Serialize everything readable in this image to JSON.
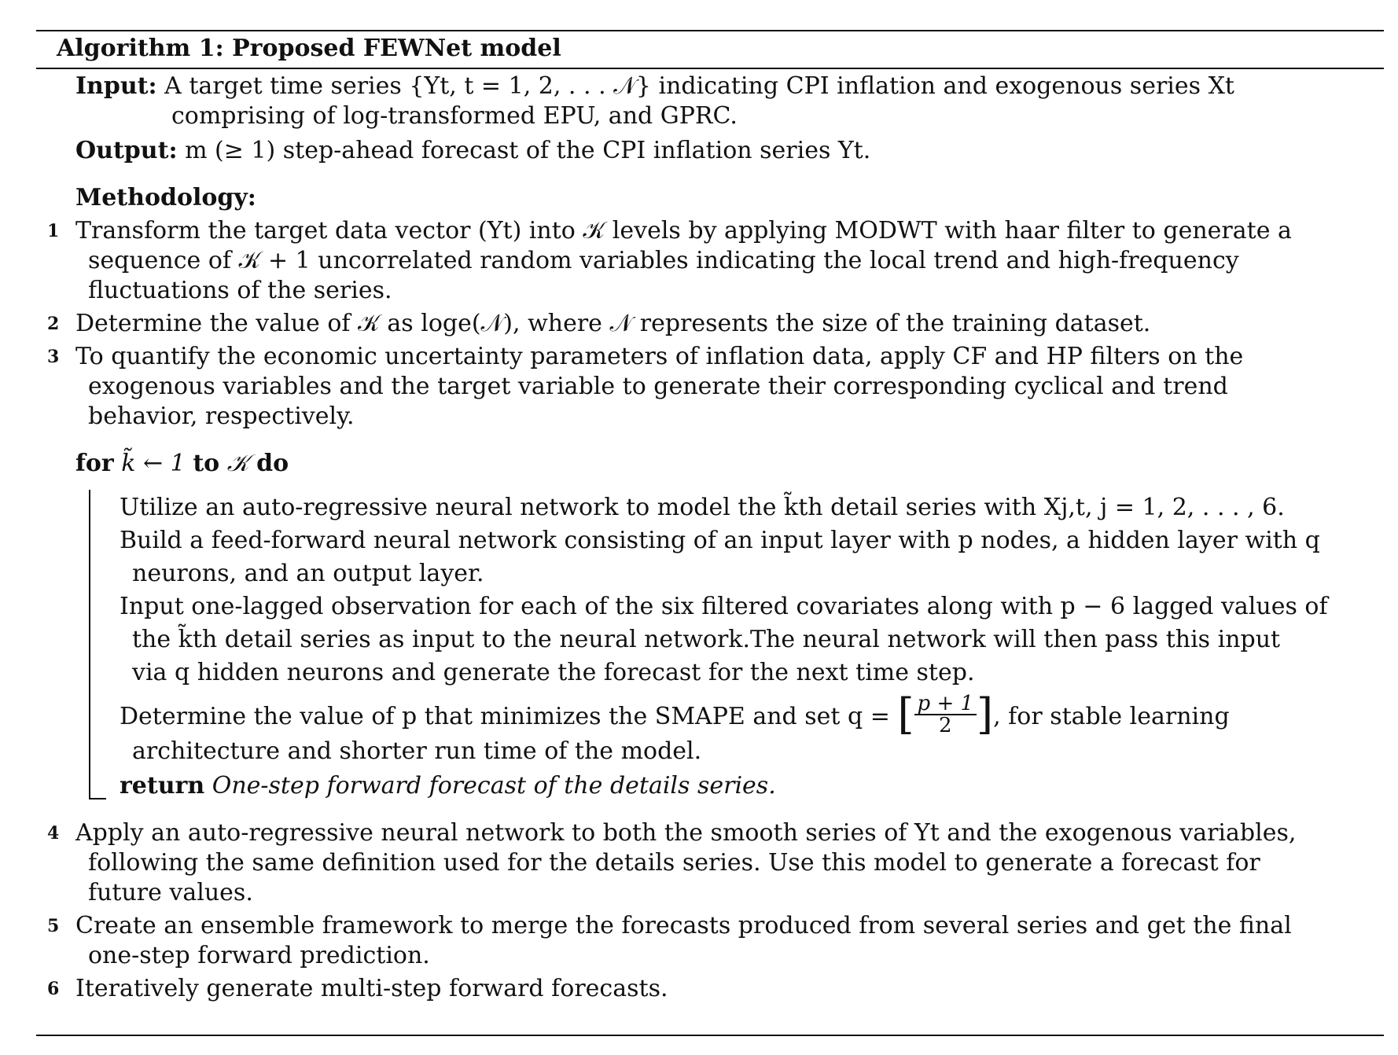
{
  "algorithm": {
    "title": "Algorithm 1: Proposed FEWNet model",
    "input_label": "Input:",
    "input_text_1": "A target time series {Yt, t = 1, 2, . . . 𝒩} indicating CPI inflation and exogenous series Xt",
    "input_text_2": "comprising of log-transformed EPU, and GPRC.",
    "output_label": "Output:",
    "output_text": "m (≥ 1) step-ahead forecast of the CPI inflation series Yt.",
    "methodology_label": "Methodology:",
    "steps": [
      {
        "num": "1",
        "lines": [
          "Transform the target data vector (Yt) into 𝒦 levels by applying MODWT with haar filter to generate a",
          "sequence of 𝒦 + 1 uncorrelated random variables indicating the local trend and high-frequency",
          "fluctuations of the series."
        ]
      },
      {
        "num": "2",
        "lines": [
          "Determine the value of 𝒦 as loge(𝒩), where 𝒩 represents the size of the training dataset."
        ]
      },
      {
        "num": "3",
        "lines": [
          "To quantify the economic uncertainty parameters of inflation data, apply CF and HP filters on the",
          "exogenous variables and the target variable to generate their corresponding cyclical and trend",
          "behavior, respectively."
        ]
      }
    ],
    "loop": {
      "for_kw": "for",
      "for_mid": "k̃ ← 1",
      "to_kw": "to",
      "to_mid": "𝒦",
      "do_kw": "do",
      "body": [
        "Utilize an auto-regressive neural network to model the k̃th detail series with Xj,t,  j = 1, 2, . . . , 6.",
        "Build a feed-forward neural network consisting of an input layer with p nodes, a hidden layer with q",
        "neurons, and an output layer.",
        "Input one-lagged observation for each of the six filtered covariates along with p − 6 lagged values of",
        "the k̃th detail series as input to the neural network.The neural network will then pass this input",
        "via q hidden neurons and generate the forecast for the next time step.",
        "Determine the value of p that minimizes the SMAPE and set q =",
        ", for stable learning",
        "architecture and shorter run time of the model."
      ],
      "frac_num": "p + 1",
      "frac_den": "2",
      "return_kw": "return",
      "return_text": "One-step forward forecast of the details series."
    },
    "steps_after": [
      {
        "num": "4",
        "lines": [
          "Apply an auto-regressive neural network to both the smooth series of Yt and the exogenous variables,",
          "following the same definition used for the details series. Use this model to generate a forecast for",
          "future values."
        ]
      },
      {
        "num": "5",
        "lines": [
          "Create an ensemble framework to merge the forecasts produced from several series and get the final",
          "one-step forward prediction."
        ]
      },
      {
        "num": "6",
        "lines": [
          "Iteratively generate multi-step forward forecasts."
        ]
      }
    ]
  }
}
